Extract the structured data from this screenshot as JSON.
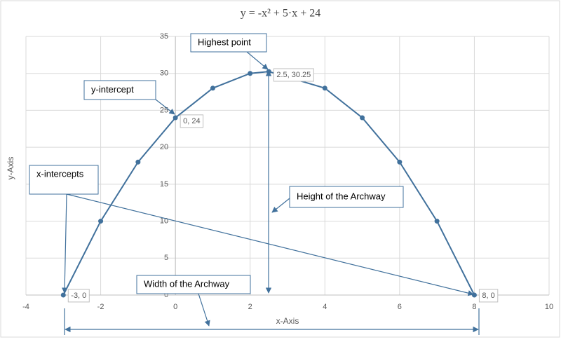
{
  "chart_data": {
    "type": "scatter",
    "title": "y = -x² + 5·x + 24",
    "x_label": "x-Axis",
    "y_label": "y-Axis",
    "x": [
      -3,
      -2,
      -1,
      0,
      1,
      2,
      2.5,
      4,
      5,
      6,
      7,
      8
    ],
    "values": [
      0,
      10,
      18,
      24,
      28,
      30,
      30.25,
      28,
      24,
      18,
      10,
      0
    ],
    "value_labels": [
      "-3, 0",
      null,
      null,
      "0, 24",
      null,
      null,
      "2.5, 30.25",
      null,
      null,
      null,
      null,
      "8, 0"
    ],
    "color": "#41719c",
    "xlim": [
      -4,
      10
    ],
    "xticks": [
      -4,
      -2,
      0,
      2,
      4,
      6,
      8,
      10
    ],
    "ylim": [
      0,
      35
    ],
    "yticks": [
      0,
      5,
      10,
      15,
      20,
      25,
      30,
      35
    ],
    "grid": true,
    "annotations": [
      "Highest point",
      "y-intercept",
      "x-intercepts",
      "Height of the Archway",
      "Width of the Archway"
    ]
  }
}
